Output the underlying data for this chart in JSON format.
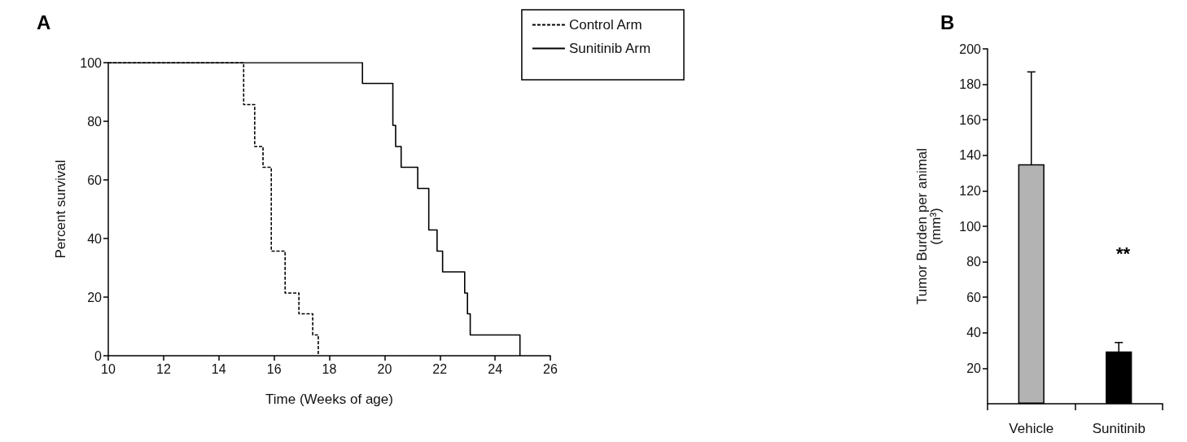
{
  "chart_data": [
    {
      "type": "step",
      "title": "A",
      "xlabel": "Time (Weeks of age)",
      "ylabel": "Percent survival",
      "xlim": [
        10,
        26
      ],
      "xticks": [
        10,
        12,
        14,
        16,
        18,
        20,
        22,
        24,
        26
      ],
      "ylim": [
        0,
        100
      ],
      "yticks": [
        0,
        20,
        40,
        60,
        80,
        100
      ],
      "legend": "top right",
      "grid": false,
      "series": [
        {
          "name": "Control Arm",
          "color": "#000000",
          "line_style": "dashed",
          "x": [
            10,
            14.9,
            15.3,
            15.6,
            15.9,
            16.4,
            16.9,
            17.4,
            17.6
          ],
          "values": [
            100,
            85.7,
            71.4,
            64.3,
            35.7,
            21.4,
            14.3,
            7.1,
            0
          ]
        },
        {
          "name": "Sunitinib Arm",
          "color": "#000000",
          "line_style": "solid",
          "x": [
            10,
            19.2,
            20.3,
            20.4,
            20.6,
            21.2,
            21.6,
            21.9,
            22.1,
            22.9,
            23.0,
            23.1,
            24.9
          ],
          "values": [
            100,
            92.9,
            78.6,
            71.4,
            64.3,
            57.1,
            42.9,
            35.7,
            28.6,
            21.4,
            14.3,
            7.1,
            0
          ]
        }
      ]
    },
    {
      "type": "bar",
      "title": "B",
      "ylabel": "Tumor Burden per animal\n(mm³)",
      "categories": [
        "Vehicle",
        "Sunitinib"
      ],
      "values": [
        135,
        29.5
      ],
      "colors": [
        "#b3b3b3",
        "#000000"
      ],
      "errors": [
        52,
        5
      ],
      "ylim": [
        0,
        200
      ],
      "yticks": [
        20,
        40,
        60,
        80,
        100,
        120,
        140,
        160,
        180,
        200
      ],
      "grid": false,
      "legend": false,
      "annotations": [
        "**"
      ]
    }
  ]
}
